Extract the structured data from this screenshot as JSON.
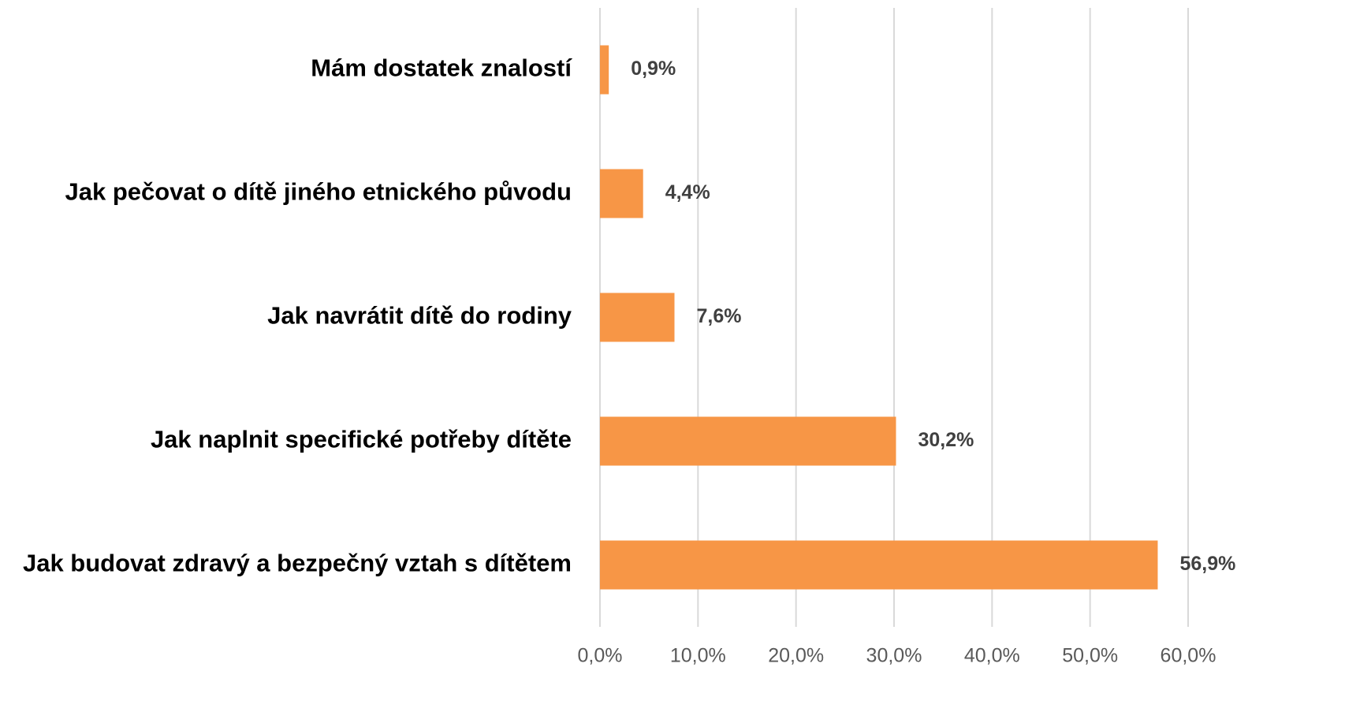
{
  "chart_data": {
    "type": "barh",
    "categories": [
      "Mám dostatek znalostí",
      "Jak pečovat o dítě jiného etnického původu",
      "Jak navrátit dítě do rodiny",
      "Jak naplnit specifické potřeby dítěte",
      "Jak budovat zdravý a bezpečný vztah s dítětem"
    ],
    "values": [
      0.9,
      4.4,
      7.6,
      30.2,
      56.9
    ],
    "value_labels": [
      "0,9%",
      "4,4%",
      "7,6%",
      "30,2%",
      "56,9%"
    ],
    "color": "#f79646",
    "xlim": [
      0,
      60
    ],
    "xticks": [
      {
        "value": 0,
        "label": "0,0%"
      },
      {
        "value": 10,
        "label": "10,0%"
      },
      {
        "value": 20,
        "label": "20,0%"
      },
      {
        "value": 30,
        "label": "30,0%"
      },
      {
        "value": 40,
        "label": "40,0%"
      },
      {
        "value": 50,
        "label": "50,0%"
      },
      {
        "value": 60,
        "label": "60,0%"
      }
    ],
    "grid": true
  }
}
